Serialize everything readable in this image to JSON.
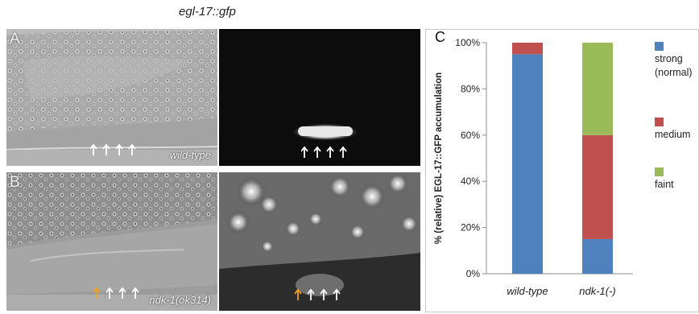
{
  "figure": {
    "title": "egl-17::gfp",
    "panel_a": {
      "letter": "A",
      "genotype": "wild-type"
    },
    "panel_b": {
      "letter": "B",
      "genotype": "ndk-1(ok314)"
    },
    "panel_c": {
      "letter": "C"
    }
  },
  "colors": {
    "strong": "#4f81bd",
    "medium": "#c0504d",
    "faint": "#9bbb59",
    "white_arrow": "#ffffff",
    "orange_arrow": "#f0a020"
  },
  "arrows": {
    "panel_a": [
      "white",
      "white",
      "white",
      "white"
    ],
    "panel_b": [
      "orange",
      "white",
      "white",
      "white"
    ]
  },
  "chart_data": {
    "type": "bar",
    "stacked": true,
    "categories": [
      "wild-type",
      "ndk-1(-)"
    ],
    "series": [
      {
        "name": "strong (normal)",
        "legend_lines": [
          "strong",
          "(normal)"
        ],
        "color": "#4f81bd",
        "values": [
          95,
          15
        ]
      },
      {
        "name": "medium",
        "legend_lines": [
          "medium"
        ],
        "color": "#c0504d",
        "values": [
          5,
          45
        ]
      },
      {
        "name": "faint",
        "legend_lines": [
          "faint"
        ],
        "color": "#9bbb59",
        "values": [
          0,
          40
        ]
      }
    ],
    "ylabel": "% (relative) EGL-17::GFP accumulation",
    "xlabel": "",
    "ylim": [
      0,
      100
    ],
    "yticks": [
      0,
      20,
      40,
      60,
      80,
      100
    ],
    "ytick_labels": [
      "0%",
      "20%",
      "40%",
      "60%",
      "80%",
      "100%"
    ],
    "legend_position": "right",
    "grid": false
  }
}
